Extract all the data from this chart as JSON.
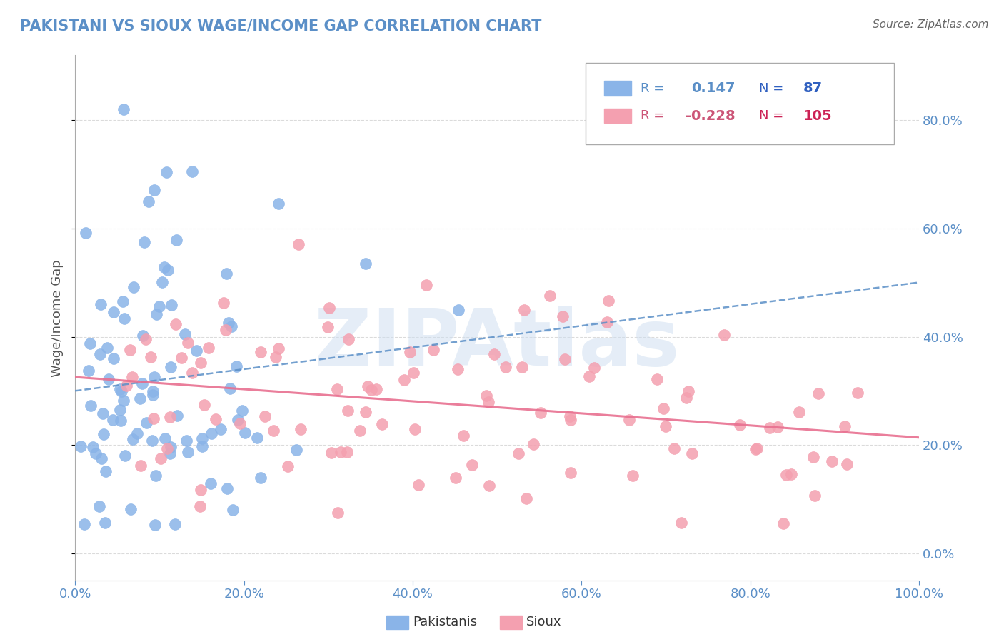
{
  "title": "PAKISTANI VS SIOUX WAGE/INCOME GAP CORRELATION CHART",
  "source": "Source: ZipAtlas.com",
  "ylabel": "Wage/Income Gap",
  "xlim": [
    0.0,
    1.0
  ],
  "ylim": [
    -0.05,
    0.92
  ],
  "yticks": [
    0.0,
    0.2,
    0.4,
    0.6,
    0.8
  ],
  "yticklabels": [
    "0.0%",
    "20.0%",
    "40.0%",
    "60.0%",
    "80.0%"
  ],
  "xticks": [
    0.0,
    0.2,
    0.4,
    0.6,
    0.8,
    1.0
  ],
  "xticklabels": [
    "0.0%",
    "20.0%",
    "40.0%",
    "60.0%",
    "80.0%",
    "100.0%"
  ],
  "pakistani_R": 0.147,
  "pakistani_N": 87,
  "sioux_R": -0.228,
  "sioux_N": 105,
  "blue_color": "#8ab4e8",
  "pink_color": "#f4a0b0",
  "blue_line_color": "#5b8fc7",
  "pink_line_color": "#e87090",
  "watermark": "ZIPAtlas",
  "background_color": "#ffffff",
  "grid_color": "#cccccc",
  "title_color": "#5b8fc7",
  "legend_R_color": "#5b8fc7",
  "legend_N_color": "#3060c0",
  "pakistani_seed": 42,
  "sioux_seed": 99
}
